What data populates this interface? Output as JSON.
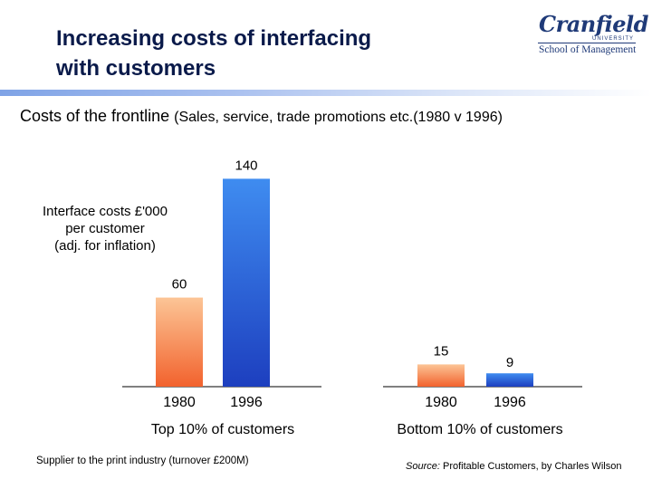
{
  "header": {
    "title_line1": "Increasing costs of interfacing",
    "title_line2": "with customers"
  },
  "logo": {
    "name": "Cranfield",
    "university": "UNIVERSITY",
    "school": "School of Management",
    "color": "#1f3a78"
  },
  "subtitle": {
    "main": "Costs of the frontline",
    "detail": "(Sales, service, trade promotions etc.(1980 v 1996)"
  },
  "footer": {
    "left_note": "Supplier to the print industry (turnover £200M)",
    "source_label": "Source:",
    "source_text": " Profitable Customers, by Charles Wilson"
  },
  "chart_data": [
    {
      "type": "bar",
      "title": "Top 10% of customers",
      "ylabel": "Interface costs £'000 per customer (adj. for inflation)",
      "ylabel_lines": [
        "Interface costs £'000",
        "per customer",
        "(adj. for inflation)"
      ],
      "categories": [
        "1980",
        "1996"
      ],
      "values": [
        60,
        140
      ],
      "value_labels": [
        "60",
        "140"
      ],
      "ylim": [
        0,
        150
      ],
      "grid": false,
      "colors": {
        "1980": "#f58b55",
        "1996": "#2f5fd8"
      }
    },
    {
      "type": "bar",
      "title": "Bottom 10% of customers",
      "categories": [
        "1980",
        "1996"
      ],
      "values": [
        15,
        9
      ],
      "value_labels": [
        "15",
        "9"
      ],
      "ylim": [
        0,
        150
      ],
      "grid": false,
      "colors": {
        "1980": "#f58b55",
        "1996": "#2f5fd8"
      }
    }
  ]
}
